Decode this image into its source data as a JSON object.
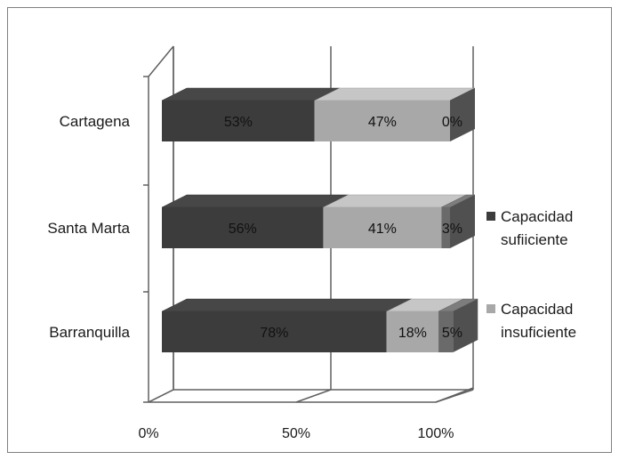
{
  "chart_data": {
    "type": "bar",
    "orientation": "horizontal",
    "stacked": "100%",
    "three_d": true,
    "categories": [
      "Cartagena",
      "Santa Marta",
      "Barranquilla"
    ],
    "series": [
      {
        "name": "Capacidad sufiiciente",
        "color": "#3c3c3c",
        "values": [
          53,
          56,
          78
        ],
        "labels": [
          "53%",
          "56%",
          "78%"
        ]
      },
      {
        "name": "Capacidad insuficiente",
        "color": "#a8a8a8",
        "values": [
          47,
          41,
          18
        ],
        "labels": [
          "47%",
          "41%",
          "18%"
        ]
      },
      {
        "name": "",
        "color": "#6a6a6a",
        "values": [
          0,
          3,
          5
        ],
        "labels": [
          "0%",
          "3%",
          "5%"
        ]
      }
    ],
    "x_ticks": [
      "0%",
      "50%",
      "100%"
    ],
    "xlim": [
      0,
      100
    ],
    "legend": {
      "position": "right",
      "entries": [
        {
          "series": 0,
          "lines": [
            "Capacidad",
            "sufiiciente"
          ]
        },
        {
          "series": 1,
          "lines": [
            "Capacidad",
            "insuficiente"
          ]
        }
      ]
    },
    "grid": true,
    "title": "",
    "xlabel": "",
    "ylabel": ""
  }
}
